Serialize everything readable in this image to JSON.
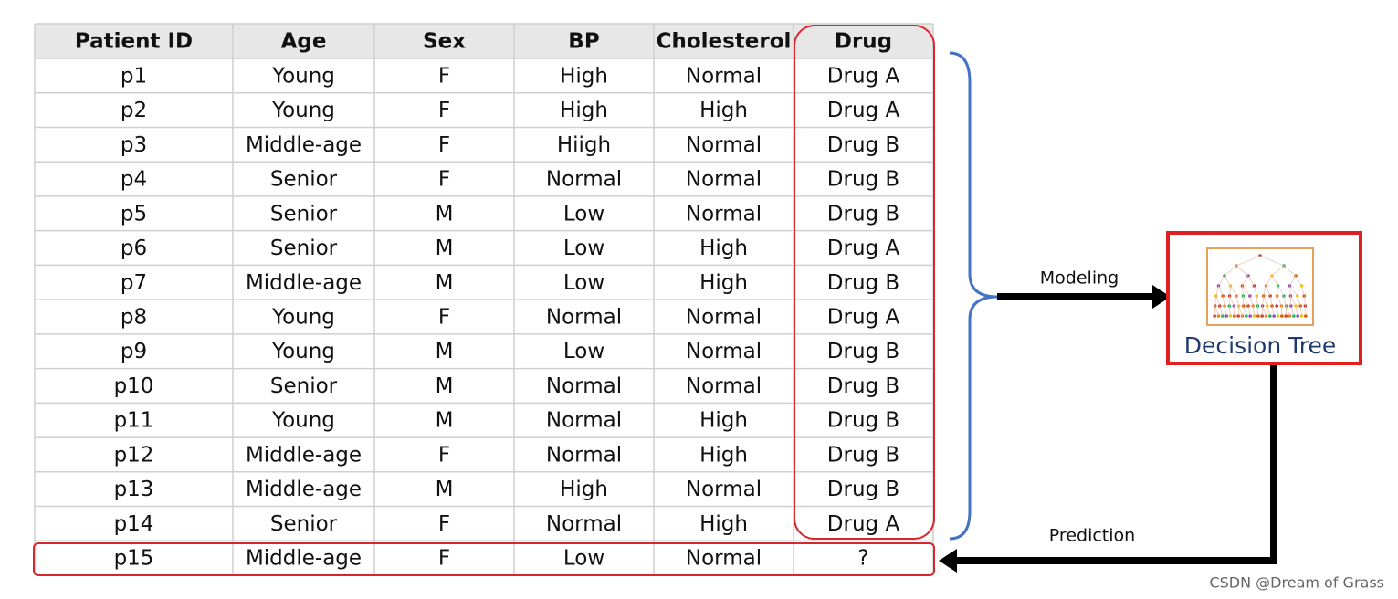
{
  "table": {
    "headers": [
      "Patient ID",
      "Age",
      "Sex",
      "BP",
      "Cholesterol",
      "Drug"
    ],
    "rows": [
      [
        "p1",
        "Young",
        "F",
        "High",
        "Normal",
        "Drug A"
      ],
      [
        "p2",
        "Young",
        "F",
        "High",
        "High",
        "Drug A"
      ],
      [
        "p3",
        "Middle-age",
        "F",
        "Hiigh",
        "Normal",
        "Drug B"
      ],
      [
        "p4",
        "Senior",
        "F",
        "Normal",
        "Normal",
        "Drug B"
      ],
      [
        "p5",
        "Senior",
        "M",
        "Low",
        "Normal",
        "Drug B"
      ],
      [
        "p6",
        "Senior",
        "M",
        "Low",
        "High",
        "Drug A"
      ],
      [
        "p7",
        "Middle-age",
        "M",
        "Low",
        "High",
        "Drug B"
      ],
      [
        "p8",
        "Young",
        "F",
        "Normal",
        "Normal",
        "Drug A"
      ],
      [
        "p9",
        "Young",
        "M",
        "Low",
        "Normal",
        "Drug B"
      ],
      [
        "p10",
        "Senior",
        "M",
        "Normal",
        "Normal",
        "Drug B"
      ],
      [
        "p11",
        "Young",
        "M",
        "Normal",
        "High",
        "Drug B"
      ],
      [
        "p12",
        "Middle-age",
        "F",
        "Normal",
        "High",
        "Drug B"
      ],
      [
        "p13",
        "Middle-age",
        "M",
        "High",
        "Normal",
        "Drug B"
      ],
      [
        "p14",
        "Senior",
        "F",
        "Normal",
        "High",
        "Drug A"
      ],
      [
        "p15",
        "Middle-age",
        "F",
        "Low",
        "Normal",
        "?"
      ]
    ]
  },
  "diagram": {
    "modeling_label": "Modeling",
    "prediction_label": "Prediction",
    "model_label": "Decision Tree"
  },
  "watermark": "CSDN @Dream of Grass"
}
